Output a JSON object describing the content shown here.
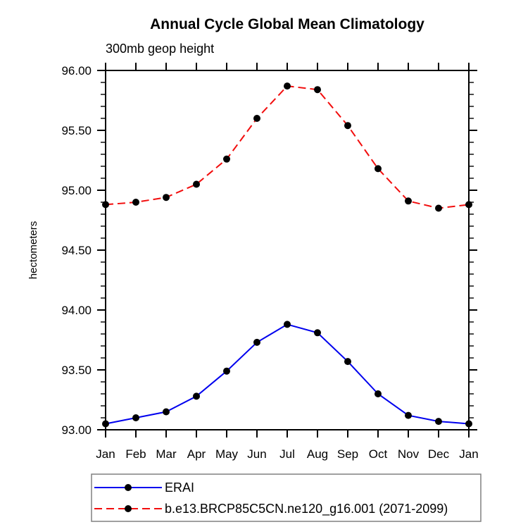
{
  "header": {
    "title": "Annual Cycle Global Mean Climatology",
    "subtitle": "300mb geop height"
  },
  "colors": {
    "axis": "#000000",
    "marker": "#000000",
    "erai_line": "#0000ee",
    "model_line": "#f20d0d",
    "legend_border": "#808080",
    "background": "#ffffff"
  },
  "chart_data": {
    "type": "line",
    "title": "Annual Cycle Global Mean Climatology",
    "subtitle": "300mb geop height",
    "xlabel": "",
    "ylabel": "hectometers",
    "x_categories": [
      "Jan",
      "Feb",
      "Mar",
      "Apr",
      "May",
      "Jun",
      "Jul",
      "Aug",
      "Sep",
      "Oct",
      "Nov",
      "Dec",
      "Jan"
    ],
    "ylim": [
      93.0,
      96.0
    ],
    "y_major_ticks": [
      93.0,
      93.5,
      94.0,
      94.5,
      95.0,
      95.5,
      96.0
    ],
    "y_major_tick_labels": [
      "93.00",
      "93.50",
      "94.00",
      "94.50",
      "95.00",
      "95.50",
      "96.00"
    ],
    "y_minor_tick_step": 0.1,
    "grid": false,
    "legend_position": "below-left",
    "series": [
      {
        "name": "ERAI",
        "color": "#0000ee",
        "line_style": "solid",
        "marker": "circle",
        "marker_color": "#000000",
        "values": [
          93.05,
          93.1,
          93.15,
          93.28,
          93.49,
          93.73,
          93.88,
          93.81,
          93.57,
          93.3,
          93.12,
          93.07,
          93.05
        ]
      },
      {
        "name": "b.e13.BRCP85C5CN.ne120_g16.001 (2071-2099)",
        "color": "#f20d0d",
        "line_style": "dashed",
        "marker": "circle",
        "marker_color": "#000000",
        "values": [
          94.88,
          94.9,
          94.94,
          95.05,
          95.26,
          95.6,
          95.87,
          95.84,
          95.54,
          95.18,
          94.91,
          94.85,
          94.88
        ]
      }
    ]
  }
}
